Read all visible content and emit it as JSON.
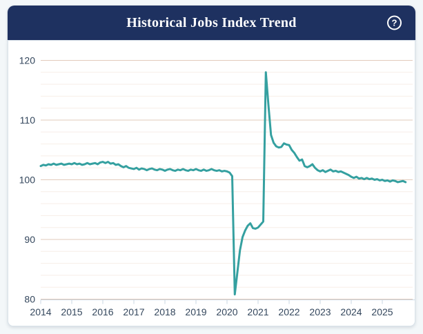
{
  "header": {
    "title": "Historical Jobs Index Trend",
    "help_icon": "?"
  },
  "colors": {
    "navy": "#1e3160",
    "page_bg": "#f3f7f9",
    "line": "#35a0a0",
    "grid_major": "#e2cbbb",
    "grid_minor": "#f7eee7",
    "axis_line": "#c9d6e2",
    "axis_text": "#33465c"
  },
  "chart_data": {
    "type": "line",
    "title": "Historical Jobs Index Trend",
    "xlabel": "",
    "ylabel": "",
    "grid": true,
    "legend": "none",
    "ylim": [
      80,
      120
    ],
    "y_major_ticks": [
      80,
      90,
      100,
      110,
      120
    ],
    "y_minor_step": 2,
    "x_tick_labels": [
      "2014",
      "2015",
      "2016",
      "2017",
      "2018",
      "2019",
      "2020",
      "2021",
      "2022",
      "2023",
      "2024",
      "2025"
    ],
    "series": [
      {
        "name": "Jobs Index",
        "frequency": "monthly",
        "start": "2014-01",
        "end": "2025-10",
        "values": [
          102.3,
          102.5,
          102.4,
          102.6,
          102.5,
          102.7,
          102.5,
          102.6,
          102.7,
          102.5,
          102.6,
          102.7,
          102.6,
          102.8,
          102.6,
          102.7,
          102.5,
          102.6,
          102.8,
          102.6,
          102.7,
          102.8,
          102.6,
          102.9,
          103.0,
          102.8,
          103.0,
          102.7,
          102.8,
          102.5,
          102.6,
          102.3,
          102.1,
          102.3,
          102.0,
          101.9,
          101.8,
          102.0,
          101.7,
          101.9,
          101.8,
          101.6,
          101.8,
          101.9,
          101.7,
          101.6,
          101.8,
          101.7,
          101.5,
          101.7,
          101.8,
          101.6,
          101.5,
          101.7,
          101.6,
          101.8,
          101.6,
          101.5,
          101.7,
          101.6,
          101.8,
          101.6,
          101.5,
          101.7,
          101.5,
          101.6,
          101.8,
          101.6,
          101.5,
          101.6,
          101.4,
          101.5,
          101.4,
          101.2,
          100.6,
          80.8,
          84.5,
          88.2,
          90.4,
          91.5,
          92.3,
          92.7,
          91.9,
          91.8,
          92.0,
          92.5,
          93.0,
          118.0,
          112.5,
          107.5,
          106.2,
          105.6,
          105.4,
          105.5,
          106.1,
          105.9,
          105.8,
          105.0,
          104.5,
          103.8,
          103.2,
          103.4,
          102.3,
          102.1,
          102.3,
          102.6,
          102.0,
          101.6,
          101.4,
          101.6,
          101.3,
          101.5,
          101.7,
          101.4,
          101.5,
          101.3,
          101.4,
          101.2,
          101.0,
          100.8,
          100.5,
          100.3,
          100.5,
          100.2,
          100.3,
          100.1,
          100.3,
          100.1,
          100.2,
          100.0,
          100.1,
          99.9,
          100.0,
          99.8,
          99.9,
          99.7,
          99.9,
          99.8,
          99.6,
          99.7,
          99.8,
          99.6
        ]
      }
    ]
  }
}
